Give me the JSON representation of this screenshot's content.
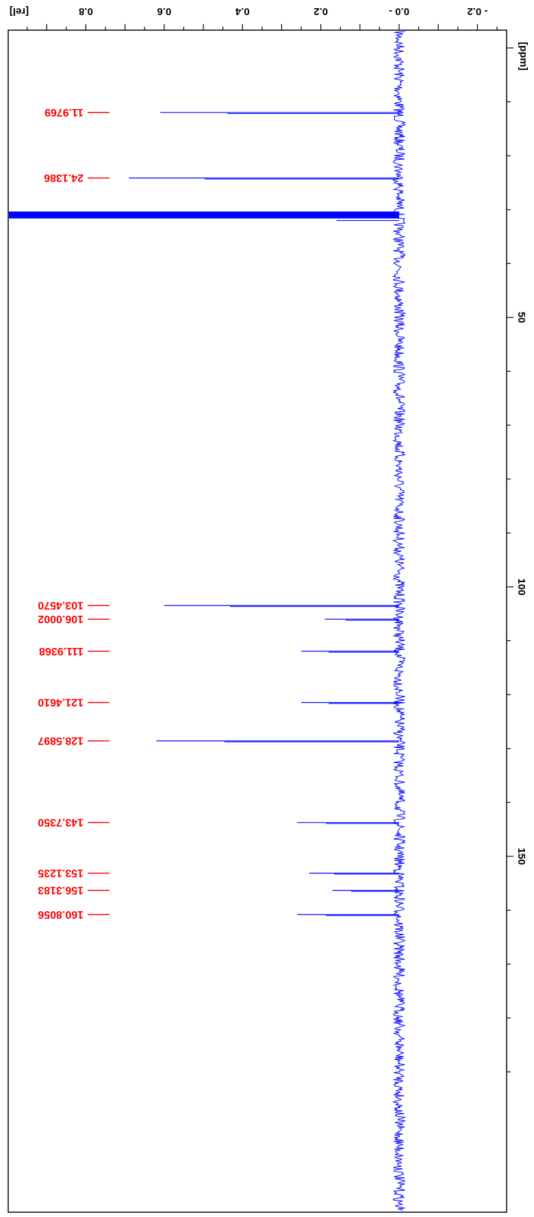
{
  "chart_data": {
    "type": "line",
    "orientation": "rotated",
    "x_unit_label": "[ppm]",
    "y_unit_label": "[rel]",
    "xlim": [
      -8,
      190
    ],
    "ylim": [
      -0.25,
      0.97
    ],
    "x_ticks": [
      {
        "value": 50,
        "label": "50"
      },
      {
        "value": 100,
        "label": "100"
      },
      {
        "value": 150,
        "label": "150"
      }
    ],
    "y_ticks": [
      {
        "value": 0.8,
        "label": "0.8"
      },
      {
        "value": 0.6,
        "label": "0.6"
      },
      {
        "value": 0.4,
        "label": "0.4"
      },
      {
        "value": 0.2,
        "label": "0.2"
      },
      {
        "value": 0.0,
        "label": "0.0 -"
      },
      {
        "value": -0.2,
        "label": "- 0.2"
      }
    ],
    "noise_level": 0.015,
    "solvent_peak": {
      "ppm": 31.0,
      "height": 1.0
    },
    "peaks": [
      {
        "ppm": 11.9769,
        "height": 0.61,
        "label": "11.9769"
      },
      {
        "ppm": 24.1386,
        "height": 0.69,
        "label": "24.1386"
      },
      {
        "ppm": 103.457,
        "height": 0.6,
        "label": "103.4570"
      },
      {
        "ppm": 106.0002,
        "height": 0.19,
        "label": "106.0002"
      },
      {
        "ppm": 111.9368,
        "height": 0.25,
        "label": "111.9368"
      },
      {
        "ppm": 121.461,
        "height": 0.25,
        "label": "121.4610"
      },
      {
        "ppm": 128.5897,
        "height": 0.62,
        "label": "128.5897"
      },
      {
        "ppm": 143.735,
        "height": 0.26,
        "label": "143.7350"
      },
      {
        "ppm": 153.1235,
        "height": 0.23,
        "label": "153.1235"
      },
      {
        "ppm": 156.3183,
        "height": 0.17,
        "label": "156.3183"
      },
      {
        "ppm": 160.8056,
        "height": 0.26,
        "label": "160.8056"
      }
    ],
    "colors": {
      "spectrum": "#0000ff",
      "peak_labels": "#ff0000",
      "axes": "#000000"
    }
  }
}
